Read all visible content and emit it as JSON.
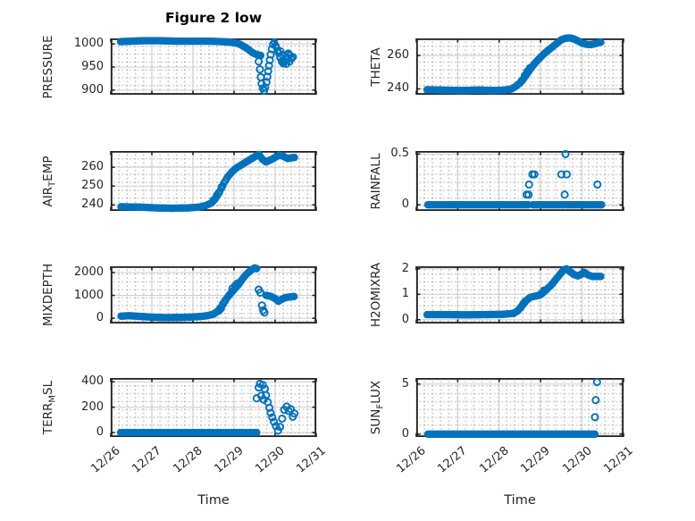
{
  "title": "Figure 2 low",
  "colors": {
    "marker": "#0072BD",
    "axis": "#212121",
    "grid": "#cdcdcd",
    "text": "#262626",
    "background": "#ffffff"
  },
  "x_axis": {
    "label": "Time",
    "ticks": [
      0,
      1,
      2,
      3,
      4,
      5
    ],
    "labels": [
      "12/26",
      "12/27",
      "12/28",
      "12/29",
      "12/30",
      "12/31"
    ],
    "xlim": [
      0,
      5
    ]
  },
  "chart_data": [
    {
      "type": "scatter",
      "name": "PRESSURE",
      "ylabel": [
        {
          "t": "PRESSURE"
        }
      ],
      "ytick_values": [
        900,
        950,
        1000
      ],
      "ytick_labels": [
        "900",
        "950",
        "1000"
      ],
      "ylim": [
        890,
        1012
      ],
      "show_x_labels": false,
      "bands": [
        {
          "step": 0.035,
          "keys": [
            [
              0.24,
              1005
            ],
            [
              0.5,
              1006
            ],
            [
              0.8,
              1007
            ],
            [
              1.2,
              1007
            ],
            [
              1.6,
              1006
            ],
            [
              2.0,
              1006
            ],
            [
              2.4,
              1006
            ],
            [
              2.7,
              1005
            ],
            [
              2.9,
              1004
            ],
            [
              3.05,
              1002
            ],
            [
              3.15,
              999
            ],
            [
              3.25,
              994
            ],
            [
              3.35,
              988
            ],
            [
              3.45,
              981
            ],
            [
              3.55,
              977
            ],
            [
              3.65,
              975
            ]
          ]
        },
        {
          "step": 0.035,
          "keys": [
            [
              3.98,
              1004
            ],
            [
              4.03,
              993
            ],
            [
              4.08,
              981
            ],
            [
              4.12,
              970
            ],
            [
              4.16,
              961
            ],
            [
              4.2,
              957
            ],
            [
              4.24,
              963
            ],
            [
              4.28,
              972
            ],
            [
              4.32,
              980
            ],
            [
              4.36,
              976
            ],
            [
              4.4,
              968
            ],
            [
              4.44,
              972
            ]
          ]
        }
      ],
      "points": [
        [
          3.6,
          962
        ],
        [
          3.63,
          945
        ],
        [
          3.65,
          928
        ],
        [
          3.67,
          914
        ],
        [
          3.7,
          904
        ],
        [
          3.73,
          899
        ],
        [
          3.76,
          906
        ],
        [
          3.79,
          917
        ],
        [
          3.81,
          929
        ],
        [
          3.83,
          941
        ],
        [
          3.85,
          953
        ],
        [
          3.87,
          965
        ],
        [
          3.89,
          977
        ],
        [
          3.92,
          989
        ],
        [
          3.95,
          999
        ],
        [
          4.13,
          984
        ],
        [
          4.18,
          976
        ],
        [
          4.27,
          957
        ],
        [
          4.35,
          962
        ]
      ]
    },
    {
      "type": "scatter",
      "name": "THETA",
      "ylabel": [
        {
          "t": "THETA"
        }
      ],
      "ytick_values": [
        240,
        260
      ],
      "ytick_labels": [
        "240",
        "260"
      ],
      "ylim": [
        236.5,
        270.3
      ],
      "show_x_labels": false,
      "bands": [
        {
          "step": 0.035,
          "keys": [
            [
              0.26,
              239.5
            ],
            [
              0.7,
              239.2
            ],
            [
              1.1,
              239
            ],
            [
              1.5,
              239.3
            ],
            [
              1.9,
              239
            ],
            [
              2.15,
              239.3
            ],
            [
              2.3,
              240
            ],
            [
              2.4,
              241.5
            ],
            [
              2.5,
              243.5
            ],
            [
              2.6,
              246.5
            ],
            [
              2.7,
              250
            ],
            [
              2.8,
              253.5
            ],
            [
              2.9,
              256.5
            ],
            [
              3.0,
              259
            ],
            [
              3.1,
              261.5
            ],
            [
              3.2,
              263.5
            ],
            [
              3.3,
              265.5
            ],
            [
              3.4,
              267.5
            ],
            [
              3.5,
              269.5
            ],
            [
              3.6,
              270.4
            ],
            [
              3.7,
              270.6
            ],
            [
              3.8,
              270
            ],
            [
              3.9,
              268.8
            ],
            [
              4.0,
              267.5
            ],
            [
              4.1,
              266.8
            ],
            [
              4.2,
              266.6
            ],
            [
              4.3,
              267
            ],
            [
              4.38,
              267.6
            ],
            [
              4.45,
              268
            ]
          ]
        }
      ],
      "points": [
        [
          2.55,
          245
        ],
        [
          2.62,
          248
        ],
        [
          2.68,
          250.5
        ],
        [
          2.74,
          252.5
        ]
      ]
    },
    {
      "type": "scatter",
      "name": "AIR_TEMP",
      "ylabel": [
        {
          "t": "AIR"
        },
        {
          "t": "T",
          "sub": true
        },
        {
          "t": "EMP"
        }
      ],
      "ytick_values": [
        240,
        250,
        260
      ],
      "ytick_labels": [
        "240",
        "250",
        "260"
      ],
      "ylim": [
        236.8,
        268.6
      ],
      "show_x_labels": false,
      "bands": [
        {
          "step": 0.035,
          "keys": [
            [
              0.25,
              239
            ],
            [
              0.7,
              238.8
            ],
            [
              1.1,
              238.4
            ],
            [
              1.5,
              238.2
            ],
            [
              1.9,
              238.4
            ],
            [
              2.15,
              238.8
            ],
            [
              2.3,
              239.5
            ],
            [
              2.45,
              241
            ],
            [
              2.55,
              243.5
            ],
            [
              2.65,
              247
            ],
            [
              2.75,
              251.5
            ],
            [
              2.85,
              255
            ],
            [
              2.95,
              257.5
            ],
            [
              3.05,
              259.5
            ],
            [
              3.2,
              261.5
            ],
            [
              3.35,
              263.5
            ],
            [
              3.5,
              265.5
            ],
            [
              3.6,
              266.8
            ],
            [
              3.7,
              264
            ],
            [
              3.78,
              262.8
            ],
            [
              3.9,
              264
            ],
            [
              4.0,
              265.2
            ],
            [
              4.1,
              266.5
            ],
            [
              4.2,
              265.8
            ],
            [
              4.3,
              264.6
            ],
            [
              4.4,
              265
            ],
            [
              4.47,
              265.2
            ]
          ]
        }
      ],
      "points": [
        [
          2.5,
          242.5
        ],
        [
          2.58,
          245
        ],
        [
          2.63,
          246.5
        ],
        [
          2.7,
          249.5
        ]
      ]
    },
    {
      "type": "scatter",
      "name": "RAINFALL",
      "ylabel": [
        {
          "t": "RAINFALL"
        }
      ],
      "ytick_values": [
        0,
        0.5
      ],
      "ytick_labels": [
        "0",
        "0.5"
      ],
      "ylim": [
        -0.06,
        0.53
      ],
      "show_x_labels": false,
      "bands": [
        {
          "step": 0.035,
          "keys": [
            [
              0.28,
              0
            ],
            [
              2.7,
              0
            ]
          ]
        },
        {
          "step": 0.035,
          "keys": [
            [
              2.81,
              0
            ],
            [
              3.56,
              0
            ]
          ]
        },
        {
          "step": 0.035,
          "keys": [
            [
              3.62,
              0
            ],
            [
              4.47,
              0
            ]
          ]
        }
      ],
      "points": [
        [
          2.66,
          0.1
        ],
        [
          2.71,
          0.1
        ],
        [
          2.72,
          0.2
        ],
        [
          2.8,
          0.3
        ],
        [
          2.85,
          0.3
        ],
        [
          3.5,
          0.3
        ],
        [
          3.63,
          0.3
        ],
        [
          3.6,
          0.5
        ],
        [
          3.58,
          0.1
        ],
        [
          4.37,
          0.2
        ]
      ]
    },
    {
      "type": "scatter",
      "name": "MIXDEPTH",
      "ylabel": [
        {
          "t": "MIXDEPTH"
        }
      ],
      "ytick_values": [
        0,
        1000,
        2000
      ],
      "ytick_labels": [
        "0",
        "1000",
        "2000"
      ],
      "ylim": [
        -230,
        2270
      ],
      "show_x_labels": false,
      "bands": [
        {
          "step": 0.035,
          "keys": [
            [
              0.25,
              90
            ],
            [
              0.45,
              110
            ],
            [
              0.7,
              80
            ],
            [
              1.0,
              45
            ],
            [
              1.3,
              25
            ],
            [
              1.6,
              30
            ],
            [
              1.9,
              45
            ],
            [
              2.15,
              70
            ],
            [
              2.35,
              110
            ],
            [
              2.5,
              180
            ],
            [
              2.6,
              300
            ],
            [
              2.7,
              520
            ],
            [
              2.8,
              820
            ],
            [
              2.9,
              1050
            ],
            [
              3.0,
              1250
            ],
            [
              3.1,
              1450
            ],
            [
              3.2,
              1700
            ],
            [
              3.3,
              1920
            ],
            [
              3.4,
              2080
            ],
            [
              3.5,
              2200
            ],
            [
              3.55,
              2170
            ]
          ]
        },
        {
          "step": 0.035,
          "keys": [
            [
              3.78,
              1000
            ],
            [
              3.9,
              950
            ],
            [
              4.0,
              860
            ],
            [
              4.08,
              740
            ],
            [
              4.15,
              820
            ],
            [
              4.25,
              900
            ],
            [
              4.35,
              930
            ],
            [
              4.46,
              950
            ]
          ]
        }
      ],
      "points": [
        [
          2.63,
          330
        ],
        [
          2.68,
          430
        ],
        [
          2.73,
          620
        ],
        [
          2.78,
          760
        ],
        [
          2.96,
          1300
        ],
        [
          3.03,
          1420
        ],
        [
          3.08,
          1520
        ],
        [
          3.6,
          1250
        ],
        [
          3.64,
          1120
        ],
        [
          3.68,
          560
        ],
        [
          3.71,
          350
        ],
        [
          3.74,
          250
        ]
      ]
    },
    {
      "type": "scatter",
      "name": "H2OMIXRA",
      "ylabel": [
        {
          "t": "H2OMIXRA"
        }
      ],
      "ytick_values": [
        0,
        1,
        2
      ],
      "ytick_labels": [
        "0",
        "1",
        "2"
      ],
      "ylim": [
        -0.15,
        2.1
      ],
      "show_x_labels": false,
      "bands": [
        {
          "step": 0.035,
          "keys": [
            [
              0.26,
              0.2
            ],
            [
              0.7,
              0.2
            ],
            [
              1.2,
              0.19
            ],
            [
              1.7,
              0.2
            ],
            [
              2.1,
              0.21
            ],
            [
              2.35,
              0.25
            ],
            [
              2.45,
              0.35
            ],
            [
              2.55,
              0.55
            ],
            [
              2.65,
              0.75
            ],
            [
              2.75,
              0.88
            ],
            [
              2.85,
              0.92
            ],
            [
              2.95,
              0.95
            ],
            [
              3.05,
              1.05
            ],
            [
              3.15,
              1.2
            ],
            [
              3.25,
              1.35
            ],
            [
              3.35,
              1.55
            ],
            [
              3.45,
              1.75
            ],
            [
              3.55,
              1.95
            ],
            [
              3.62,
              2.0
            ],
            [
              3.7,
              1.9
            ],
            [
              3.8,
              1.78
            ],
            [
              3.9,
              1.72
            ],
            [
              4.0,
              1.8
            ],
            [
              4.08,
              1.83
            ],
            [
              4.15,
              1.75
            ],
            [
              4.25,
              1.7
            ],
            [
              4.35,
              1.7
            ],
            [
              4.45,
              1.7
            ]
          ]
        }
      ],
      "points": [
        [
          2.52,
          0.48
        ],
        [
          2.58,
          0.62
        ],
        [
          2.62,
          0.7
        ],
        [
          3.0,
          1.0
        ],
        [
          3.08,
          1.15
        ],
        [
          4.05,
          1.85
        ]
      ]
    },
    {
      "type": "scatter",
      "name": "TERR_MSL",
      "ylabel": [
        {
          "t": "TERR"
        },
        {
          "t": "M",
          "sub": true
        },
        {
          "t": "SL"
        }
      ],
      "ytick_values": [
        0,
        200,
        400
      ],
      "ytick_labels": [
        "0",
        "200",
        "400"
      ],
      "ylim": [
        -35,
        430
      ],
      "show_x_labels": true,
      "bands": [
        {
          "step": 0.035,
          "keys": [
            [
              0.24,
              0
            ],
            [
              3.55,
              0
            ]
          ]
        }
      ],
      "points": [
        [
          3.55,
          270
        ],
        [
          3.6,
          355
        ],
        [
          3.63,
          385
        ],
        [
          3.66,
          290
        ],
        [
          3.7,
          375
        ],
        [
          3.72,
          260
        ],
        [
          3.75,
          345
        ],
        [
          3.78,
          295
        ],
        [
          3.82,
          240
        ],
        [
          3.86,
          195
        ],
        [
          3.89,
          155
        ],
        [
          3.93,
          120
        ],
        [
          3.97,
          85
        ],
        [
          4.02,
          50
        ],
        [
          4.07,
          15
        ],
        [
          4.12,
          45
        ],
        [
          4.17,
          110
        ],
        [
          4.22,
          180
        ],
        [
          4.28,
          205
        ],
        [
          4.33,
          170
        ],
        [
          4.38,
          185
        ],
        [
          4.43,
          125
        ],
        [
          4.47,
          150
        ]
      ]
    },
    {
      "type": "scatter",
      "name": "SUN_FLUX",
      "ylabel": [
        {
          "t": "SUN"
        },
        {
          "t": "F",
          "sub": true
        },
        {
          "t": "LUX"
        }
      ],
      "ytick_values": [
        0,
        5
      ],
      "ytick_labels": [
        "0",
        "5"
      ],
      "ylim": [
        -0.28,
        5.6
      ],
      "show_x_labels": true,
      "bands": [
        {
          "step": 0.035,
          "keys": [
            [
              0.28,
              0
            ],
            [
              4.31,
              0
            ]
          ]
        }
      ],
      "points": [
        [
          4.36,
          5.2
        ],
        [
          4.33,
          3.4
        ],
        [
          4.31,
          1.7
        ]
      ]
    }
  ]
}
